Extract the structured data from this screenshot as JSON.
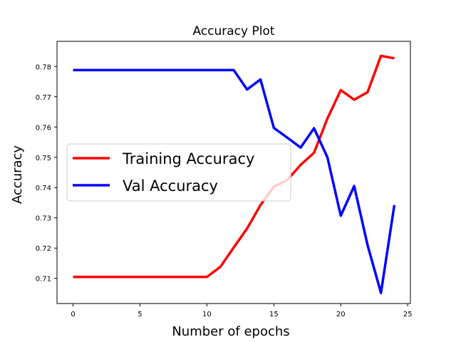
{
  "chart_data": {
    "type": "line",
    "title": "Accuracy Plot",
    "xlabel": "Number of epochs",
    "ylabel": "Accuracy",
    "xlim": [
      -1.2,
      25.2
    ],
    "ylim": [
      0.7017,
      0.7883
    ],
    "xticks": [
      0,
      5,
      10,
      15,
      20,
      25
    ],
    "yticks": [
      0.71,
      0.72,
      0.73,
      0.74,
      0.75,
      0.76,
      0.77,
      0.78
    ],
    "xtick_labels": [
      "0",
      "5",
      "10",
      "15",
      "20",
      "25"
    ],
    "ytick_labels": [
      "0.71",
      "0.72",
      "0.73",
      "0.74",
      "0.75",
      "0.76",
      "0.77",
      "0.78"
    ],
    "grid": false,
    "legend_position": "center-left",
    "x": [
      0,
      1,
      2,
      3,
      4,
      5,
      6,
      7,
      8,
      9,
      10,
      11,
      12,
      13,
      14,
      15,
      16,
      17,
      18,
      19,
      20,
      21,
      22,
      23,
      24
    ],
    "series": [
      {
        "name": "Training Accuracy",
        "color": "#ff0000",
        "values": [
          0.7105,
          0.7105,
          0.7105,
          0.7105,
          0.7105,
          0.7105,
          0.7105,
          0.7105,
          0.7105,
          0.7105,
          0.7105,
          0.7138,
          0.7202,
          0.7265,
          0.7342,
          0.7403,
          0.7425,
          0.7475,
          0.7515,
          0.7628,
          0.7722,
          0.769,
          0.7715,
          0.7835,
          0.7827
        ]
      },
      {
        "name": "Val Accuracy",
        "color": "#0000ff",
        "values": [
          0.7788,
          0.7788,
          0.7788,
          0.7788,
          0.7788,
          0.7788,
          0.7788,
          0.7788,
          0.7788,
          0.7788,
          0.7788,
          0.7788,
          0.7788,
          0.7724,
          0.7757,
          0.7597,
          0.7565,
          0.7532,
          0.7596,
          0.75,
          0.7307,
          0.7405,
          0.721,
          0.7052,
          0.7342
        ]
      }
    ]
  }
}
